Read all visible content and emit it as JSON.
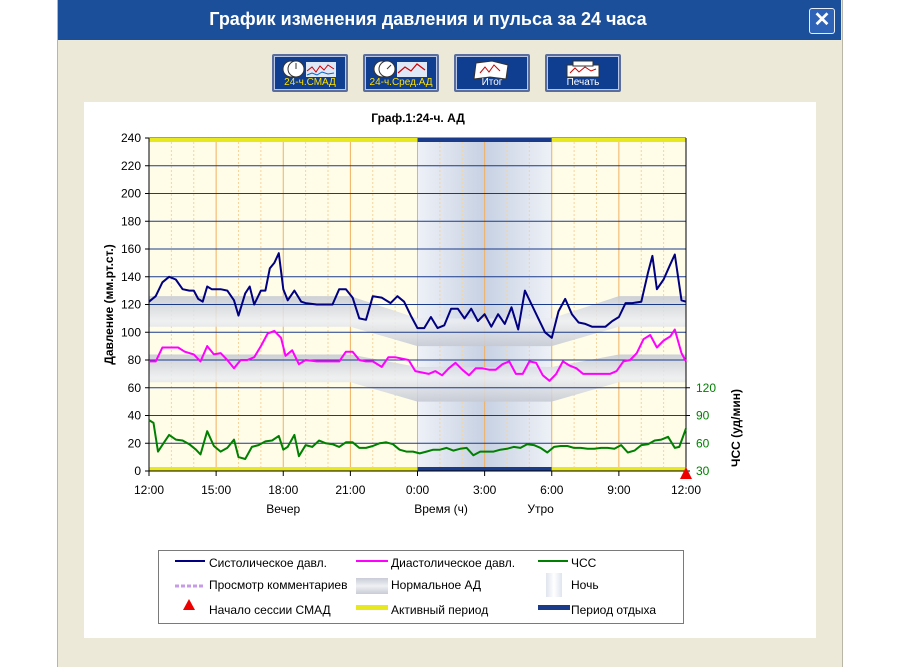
{
  "window": {
    "title": "График изменения давления и пульса за 24 часа",
    "close": "✕"
  },
  "toolbar": [
    {
      "label": "24-ч.СМАД"
    },
    {
      "label": "24-ч.Сред.АД"
    },
    {
      "label": "Итог"
    },
    {
      "label": "Печать"
    }
  ],
  "colors": {
    "systolic": "#000080",
    "diastolic": "#ff00ff",
    "hr": "#008000",
    "active": "#e8e820",
    "rest": "#1a3a8a",
    "hrAxis": "#008000"
  },
  "chart_data": {
    "type": "line",
    "title": "Граф.1:24-ч. АД",
    "ylabel": "Давление (мм.рт.ст.)",
    "y2label": "ЧСС (уд/мин)",
    "xlabel": "Время (ч)",
    "x_period_labels": {
      "left": "Вечер",
      "right": "Утро"
    },
    "ylim": [
      0,
      240
    ],
    "yticks": [
      0,
      20,
      40,
      60,
      80,
      100,
      120,
      140,
      160,
      180,
      200,
      220,
      240
    ],
    "y2ticks": [
      30,
      60,
      90,
      120
    ],
    "xlim": [
      12,
      36
    ],
    "xticks": [
      {
        "v": 12,
        "label": "12:00"
      },
      {
        "v": 15,
        "label": "15:00"
      },
      {
        "v": 18,
        "label": "18:00"
      },
      {
        "v": 21,
        "label": "21:00"
      },
      {
        "v": 24,
        "label": "0:00"
      },
      {
        "v": 27,
        "label": "3:00"
      },
      {
        "v": 30,
        "label": "6:00"
      },
      {
        "v": 33,
        "label": "9:00"
      },
      {
        "v": 36,
        "label": "12:00"
      }
    ],
    "night": [
      24,
      30
    ],
    "normal_band_top": [
      [
        12,
        126
      ],
      [
        21,
        126
      ],
      [
        24,
        110
      ],
      [
        30,
        110
      ],
      [
        33,
        126
      ],
      [
        36,
        126
      ]
    ],
    "normal_band_bottom": [
      [
        12,
        104
      ],
      [
        21,
        104
      ],
      [
        24,
        90
      ],
      [
        30,
        90
      ],
      [
        33,
        104
      ],
      [
        36,
        104
      ]
    ],
    "normal_band2_top": [
      [
        12,
        84
      ],
      [
        21,
        84
      ],
      [
        24,
        75
      ],
      [
        30,
        75
      ],
      [
        33,
        84
      ],
      [
        36,
        84
      ]
    ],
    "normal_band2_bottom": [
      [
        12,
        64
      ],
      [
        21,
        64
      ],
      [
        24,
        50
      ],
      [
        30,
        50
      ],
      [
        33,
        64
      ],
      [
        36,
        64
      ]
    ],
    "series": [
      {
        "name": "Систолическое давл.",
        "key": "systolic",
        "points": [
          [
            12.0,
            122
          ],
          [
            12.3,
            126
          ],
          [
            12.6,
            136
          ],
          [
            12.9,
            140
          ],
          [
            13.2,
            138
          ],
          [
            13.5,
            131
          ],
          [
            13.8,
            130
          ],
          [
            14.0,
            130
          ],
          [
            14.2,
            124
          ],
          [
            14.4,
            122
          ],
          [
            14.6,
            133
          ],
          [
            14.8,
            131
          ],
          [
            15.2,
            131
          ],
          [
            15.5,
            130
          ],
          [
            15.8,
            123
          ],
          [
            16.0,
            112
          ],
          [
            16.3,
            128
          ],
          [
            16.5,
            133
          ],
          [
            16.7,
            120
          ],
          [
            17.0,
            130
          ],
          [
            17.2,
            130
          ],
          [
            17.4,
            146
          ],
          [
            17.6,
            150
          ],
          [
            17.8,
            157
          ],
          [
            18.0,
            131
          ],
          [
            18.2,
            123
          ],
          [
            18.5,
            130
          ],
          [
            18.8,
            122
          ],
          [
            19.0,
            121
          ],
          [
            19.5,
            120
          ],
          [
            19.8,
            120
          ],
          [
            20.2,
            120
          ],
          [
            20.5,
            131
          ],
          [
            20.8,
            131
          ],
          [
            21.1,
            125
          ],
          [
            21.4,
            110
          ],
          [
            21.7,
            109
          ],
          [
            22.0,
            126
          ],
          [
            22.4,
            125
          ],
          [
            22.8,
            121
          ],
          [
            23.1,
            126
          ],
          [
            23.4,
            122
          ],
          [
            23.7,
            112
          ],
          [
            24.0,
            103
          ],
          [
            24.3,
            103
          ],
          [
            24.6,
            111
          ],
          [
            24.9,
            103
          ],
          [
            25.2,
            105
          ],
          [
            25.5,
            117
          ],
          [
            25.8,
            117
          ],
          [
            26.1,
            110
          ],
          [
            26.4,
            117
          ],
          [
            26.7,
            108
          ],
          [
            27.0,
            113
          ],
          [
            27.3,
            104
          ],
          [
            27.6,
            113
          ],
          [
            27.9,
            106
          ],
          [
            28.2,
            118
          ],
          [
            28.5,
            102
          ],
          [
            28.8,
            130
          ],
          [
            29.1,
            120
          ],
          [
            29.4,
            110
          ],
          [
            29.7,
            100
          ],
          [
            30.0,
            96
          ],
          [
            30.3,
            115
          ],
          [
            30.6,
            124
          ],
          [
            30.9,
            113
          ],
          [
            31.2,
            107
          ],
          [
            31.5,
            106
          ],
          [
            31.8,
            104
          ],
          [
            32.1,
            104
          ],
          [
            32.4,
            104
          ],
          [
            32.7,
            108
          ],
          [
            33.0,
            111
          ],
          [
            33.3,
            121
          ],
          [
            33.6,
            121
          ],
          [
            34.0,
            122
          ],
          [
            34.3,
            143
          ],
          [
            34.5,
            155
          ],
          [
            34.7,
            131
          ],
          [
            35.0,
            138
          ],
          [
            35.3,
            149
          ],
          [
            35.5,
            156
          ],
          [
            35.8,
            123
          ],
          [
            36.0,
            122
          ]
        ]
      },
      {
        "name": "Диастолическое давл.",
        "key": "diastolic",
        "points": [
          [
            12.0,
            79
          ],
          [
            12.3,
            79
          ],
          [
            12.6,
            89
          ],
          [
            12.9,
            89
          ],
          [
            13.3,
            89
          ],
          [
            13.6,
            86
          ],
          [
            14.0,
            84
          ],
          [
            14.3,
            79
          ],
          [
            14.6,
            90
          ],
          [
            14.9,
            84
          ],
          [
            15.2,
            85
          ],
          [
            15.5,
            80
          ],
          [
            15.8,
            74
          ],
          [
            16.1,
            80
          ],
          [
            16.4,
            80
          ],
          [
            16.7,
            82
          ],
          [
            17.0,
            90
          ],
          [
            17.3,
            99
          ],
          [
            17.6,
            101
          ],
          [
            17.9,
            96
          ],
          [
            18.1,
            83
          ],
          [
            18.4,
            87
          ],
          [
            18.7,
            77
          ],
          [
            19.0,
            80
          ],
          [
            19.5,
            79
          ],
          [
            20.0,
            79
          ],
          [
            20.5,
            79
          ],
          [
            20.8,
            86
          ],
          [
            21.1,
            86
          ],
          [
            21.4,
            80
          ],
          [
            21.7,
            79
          ],
          [
            22.0,
            79
          ],
          [
            22.4,
            75
          ],
          [
            22.7,
            82
          ],
          [
            23.0,
            82
          ],
          [
            23.3,
            81
          ],
          [
            23.6,
            80
          ],
          [
            23.9,
            72
          ],
          [
            24.2,
            71
          ],
          [
            24.5,
            70
          ],
          [
            24.8,
            72
          ],
          [
            25.1,
            69
          ],
          [
            25.4,
            74
          ],
          [
            25.7,
            78
          ],
          [
            26.0,
            73
          ],
          [
            26.3,
            69
          ],
          [
            26.6,
            74
          ],
          [
            26.9,
            74
          ],
          [
            27.2,
            73
          ],
          [
            27.5,
            73
          ],
          [
            27.8,
            77
          ],
          [
            28.1,
            79
          ],
          [
            28.4,
            70
          ],
          [
            28.7,
            70
          ],
          [
            29.0,
            79
          ],
          [
            29.3,
            78
          ],
          [
            29.6,
            69
          ],
          [
            29.9,
            65
          ],
          [
            30.2,
            70
          ],
          [
            30.5,
            79
          ],
          [
            30.8,
            76
          ],
          [
            31.1,
            74
          ],
          [
            31.4,
            70
          ],
          [
            31.7,
            70
          ],
          [
            32.0,
            70
          ],
          [
            32.3,
            70
          ],
          [
            32.6,
            70
          ],
          [
            32.9,
            72
          ],
          [
            33.2,
            79
          ],
          [
            33.5,
            80
          ],
          [
            33.8,
            85
          ],
          [
            34.1,
            95
          ],
          [
            34.4,
            98
          ],
          [
            34.7,
            89
          ],
          [
            35.0,
            94
          ],
          [
            35.3,
            97
          ],
          [
            35.5,
            102
          ],
          [
            35.8,
            85
          ],
          [
            36.0,
            79
          ]
        ]
      },
      {
        "name": "ЧСС",
        "key": "hr",
        "points": [
          [
            12.0,
            85
          ],
          [
            12.2,
            82
          ],
          [
            12.4,
            51
          ],
          [
            12.7,
            62
          ],
          [
            12.9,
            69
          ],
          [
            13.2,
            64
          ],
          [
            13.5,
            63
          ],
          [
            13.8,
            59
          ],
          [
            14.1,
            53
          ],
          [
            14.3,
            48
          ],
          [
            14.6,
            73
          ],
          [
            14.9,
            57
          ],
          [
            15.2,
            51
          ],
          [
            15.5,
            55
          ],
          [
            15.8,
            64
          ],
          [
            16.0,
            45
          ],
          [
            16.3,
            43
          ],
          [
            16.6,
            56
          ],
          [
            16.9,
            58
          ],
          [
            17.2,
            62
          ],
          [
            17.5,
            63
          ],
          [
            17.8,
            68
          ],
          [
            18.0,
            53
          ],
          [
            18.2,
            56
          ],
          [
            18.5,
            69
          ],
          [
            18.7,
            46
          ],
          [
            19.0,
            58
          ],
          [
            19.3,
            56
          ],
          [
            19.6,
            63
          ],
          [
            19.9,
            60
          ],
          [
            20.2,
            59
          ],
          [
            20.5,
            56
          ],
          [
            20.8,
            61
          ],
          [
            21.1,
            61
          ],
          [
            21.4,
            55
          ],
          [
            21.7,
            55
          ],
          [
            22.0,
            57
          ],
          [
            22.3,
            60
          ],
          [
            22.6,
            61
          ],
          [
            22.9,
            59
          ],
          [
            23.2,
            53
          ],
          [
            23.5,
            51
          ],
          [
            23.8,
            51
          ],
          [
            24.1,
            49
          ],
          [
            24.4,
            51
          ],
          [
            24.7,
            53
          ],
          [
            25.0,
            53
          ],
          [
            25.3,
            55
          ],
          [
            25.6,
            52
          ],
          [
            25.9,
            54
          ],
          [
            26.2,
            55
          ],
          [
            26.5,
            47
          ],
          [
            26.8,
            51
          ],
          [
            27.1,
            51
          ],
          [
            27.4,
            51
          ],
          [
            27.7,
            53
          ],
          [
            28.0,
            54
          ],
          [
            28.3,
            56
          ],
          [
            28.6,
            55
          ],
          [
            28.9,
            59
          ],
          [
            29.2,
            58
          ],
          [
            29.5,
            55
          ],
          [
            29.8,
            50
          ],
          [
            30.1,
            56
          ],
          [
            30.4,
            57
          ],
          [
            30.7,
            57
          ],
          [
            31.0,
            55
          ],
          [
            31.3,
            55
          ],
          [
            31.6,
            54
          ],
          [
            31.9,
            54
          ],
          [
            32.2,
            55
          ],
          [
            32.5,
            55
          ],
          [
            32.8,
            54
          ],
          [
            33.1,
            58
          ],
          [
            33.4,
            50
          ],
          [
            33.7,
            52
          ],
          [
            34.0,
            58
          ],
          [
            34.3,
            59
          ],
          [
            34.6,
            63
          ],
          [
            34.9,
            64
          ],
          [
            35.2,
            67
          ],
          [
            35.5,
            55
          ],
          [
            35.7,
            56
          ],
          [
            36.0,
            76
          ]
        ]
      }
    ],
    "session_start_marker": 36
  },
  "legend": {
    "systolic": "Систолическое давл.",
    "diastolic": "Диастолическое давл.",
    "hr": "ЧСС",
    "comments": "Просмотр комментариев",
    "normal": "Нормальное АД",
    "night": "Ночь",
    "session_start": "Начало сессии СМАД",
    "active": "Активный период",
    "rest": "Период отдыха"
  }
}
